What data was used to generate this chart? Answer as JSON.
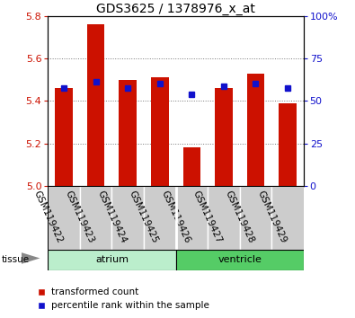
{
  "title": "GDS3625 / 1378976_x_at",
  "samples": [
    "GSM119422",
    "GSM119423",
    "GSM119424",
    "GSM119425",
    "GSM119426",
    "GSM119427",
    "GSM119428",
    "GSM119429"
  ],
  "red_values": [
    5.46,
    5.76,
    5.5,
    5.51,
    5.18,
    5.46,
    5.53,
    5.39
  ],
  "blue_values": [
    5.46,
    5.49,
    5.46,
    5.48,
    5.43,
    5.47,
    5.48,
    5.46
  ],
  "y_min": 5.0,
  "y_max": 5.8,
  "y_ticks": [
    5.0,
    5.2,
    5.4,
    5.6,
    5.8
  ],
  "right_y_ticks": [
    0,
    25,
    50,
    75,
    100
  ],
  "red_color": "#CC1100",
  "blue_color": "#1111CC",
  "bar_width": 0.55,
  "baseline": 5.0,
  "grid_color": "#777777",
  "legend_red": "transformed count",
  "legend_blue": "percentile rank within the sample",
  "tissue_label": "tissue",
  "title_fontsize": 10,
  "tick_fontsize": 8,
  "label_fontsize": 7.5,
  "atrium_color": "#BBEECC",
  "ventricle_color": "#55CC66",
  "gray_box_color": "#CCCCCC"
}
